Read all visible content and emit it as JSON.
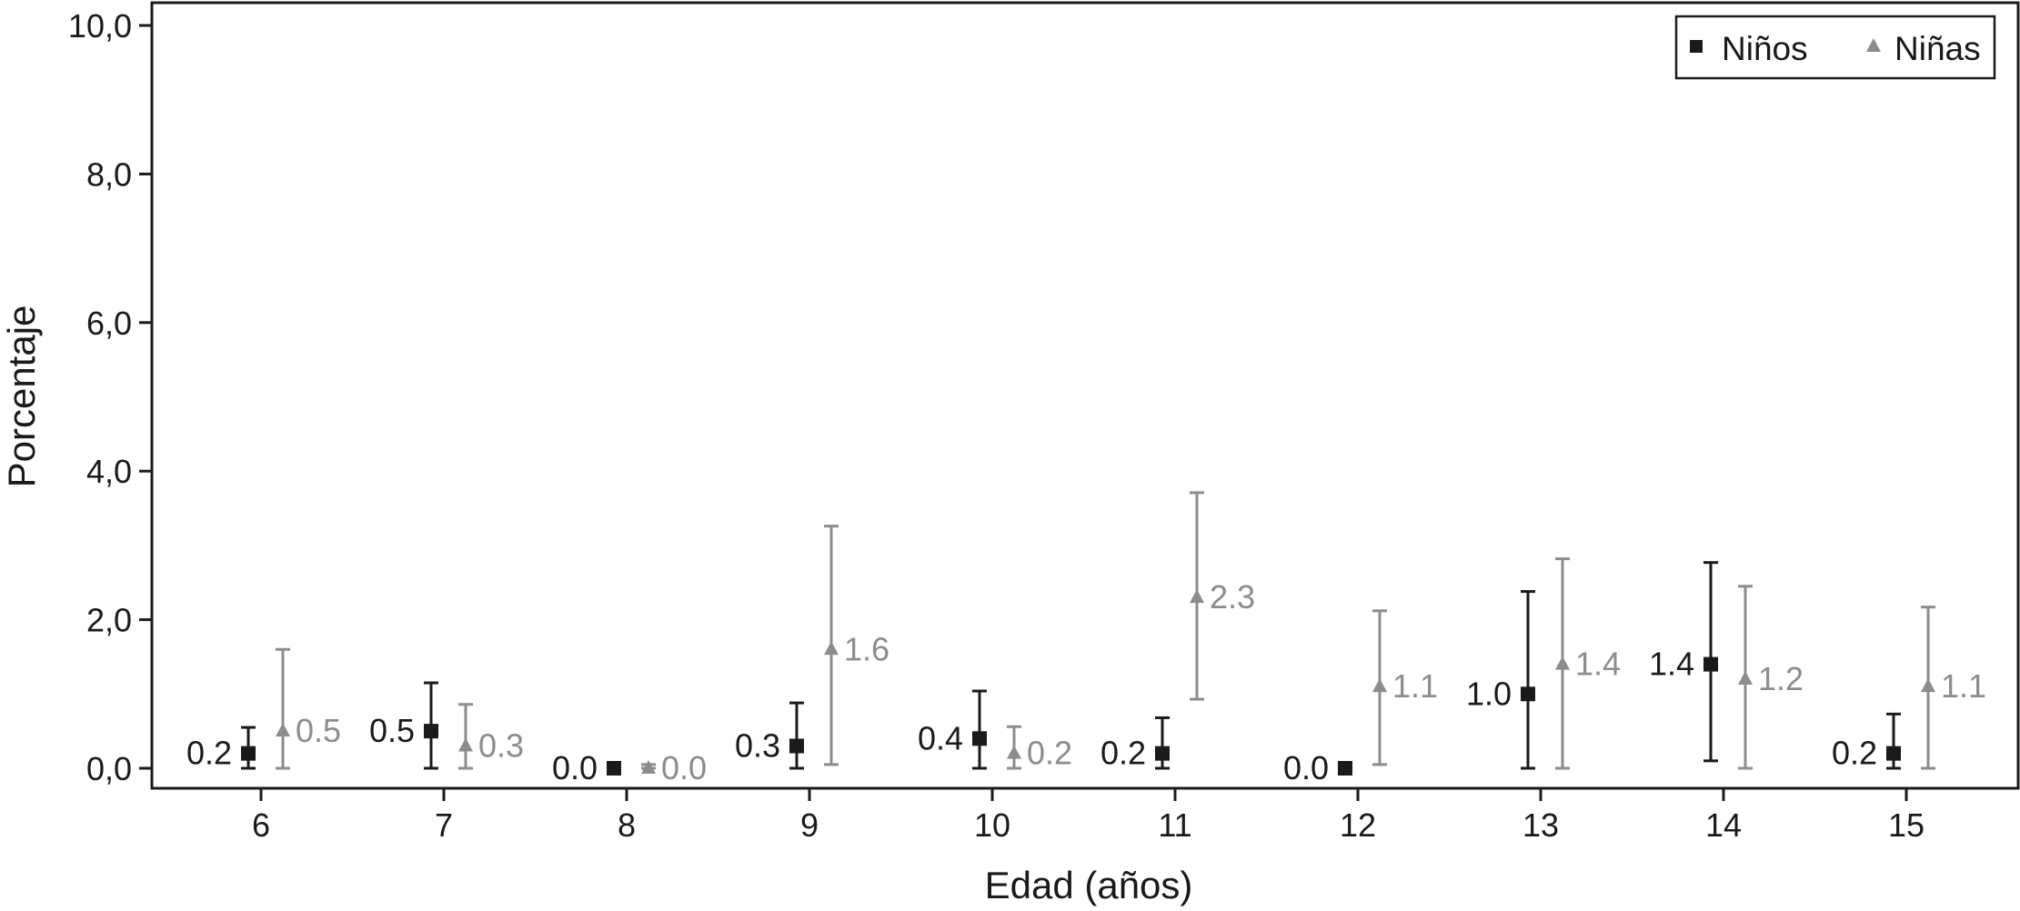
{
  "chart_data": {
    "type": "scatter",
    "xlabel": "Edad (años)",
    "ylabel": "Porcentaje",
    "categories": [
      "6",
      "7",
      "8",
      "9",
      "10",
      "11",
      "12",
      "13",
      "14",
      "15"
    ],
    "ylim": [
      0,
      10
    ],
    "yticks": [
      "0,0",
      "2,0",
      "4,0",
      "6,0",
      "8,0",
      "10,0"
    ],
    "grid": false,
    "legend_position": "top-right",
    "series": [
      {
        "name": "Niños",
        "marker": "square",
        "color": "#1a1a1a",
        "values": [
          0.2,
          0.5,
          0.0,
          0.3,
          0.4,
          0.2,
          0.0,
          1.0,
          1.4,
          0.2
        ],
        "labels": [
          "0.2",
          "0.5",
          "0.0",
          "0.3",
          "0.4",
          "0.2",
          "0.0",
          "1.0",
          "1.4",
          "0.2"
        ],
        "ci_low": [
          0.0,
          0.0,
          0.0,
          0.0,
          0.0,
          0.0,
          0.0,
          0.0,
          0.1,
          0.0
        ],
        "ci_high": [
          0.55,
          1.15,
          0.03,
          0.88,
          1.04,
          0.68,
          0.03,
          2.38,
          2.77,
          0.73
        ]
      },
      {
        "name": "Niñas",
        "marker": "triangle",
        "color": "#8c8c8c",
        "values": [
          0.5,
          0.3,
          0.0,
          1.6,
          0.2,
          2.3,
          1.1,
          1.4,
          1.2,
          1.1
        ],
        "labels": [
          "0.5",
          "0.3",
          "0.0",
          "1.6",
          "0.2",
          "2.3",
          "1.1",
          "1.4",
          "1.2",
          "1.1"
        ],
        "ci_low": [
          0.0,
          0.0,
          0.0,
          0.05,
          0.0,
          0.93,
          0.05,
          0.0,
          0.0,
          0.0
        ],
        "ci_high": [
          1.6,
          0.86,
          0.05,
          3.26,
          0.56,
          3.71,
          2.12,
          2.82,
          2.45,
          2.17
        ]
      }
    ]
  }
}
